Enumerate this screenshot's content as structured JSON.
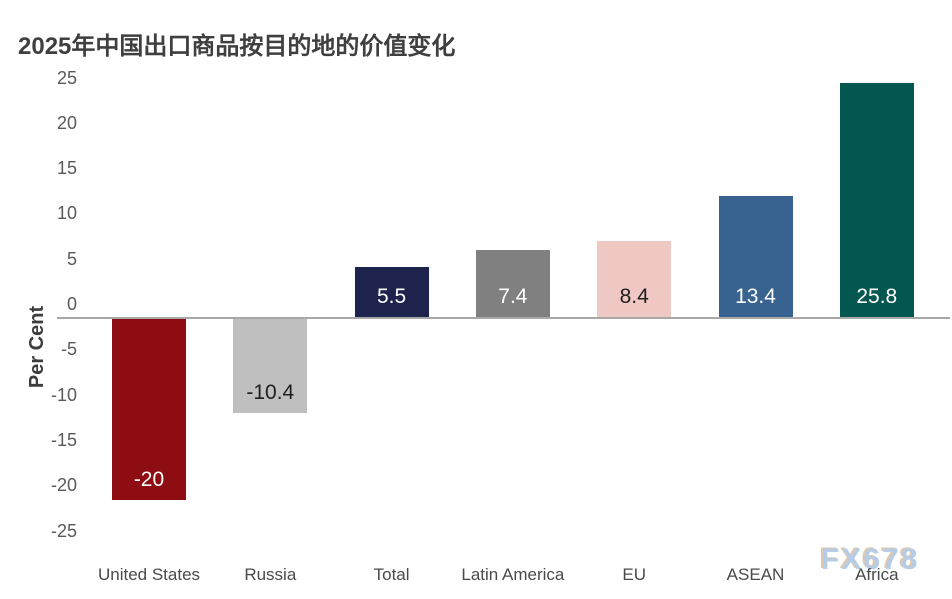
{
  "header": {
    "title": "2025年中国出口商品按目的地的价值变化"
  },
  "watermark": {
    "text": "FX678",
    "color": "#b5cbe6",
    "accent_color": "#dfc9ae"
  },
  "chart_data": {
    "type": "bar",
    "title": "2025年中国出口商品按目的地的价值变化",
    "xlabel": "",
    "ylabel": "Per Cent",
    "categories": [
      "United States",
      "Russia",
      "Total",
      "Latin America",
      "EU",
      "ASEAN",
      "Africa"
    ],
    "values": [
      -20,
      -10.4,
      5.5,
      7.4,
      8.4,
      13.4,
      25.8
    ],
    "bar_labels": [
      "-20",
      "-10.4",
      "5.5",
      "7.4",
      "8.4",
      "13.4",
      "25.8"
    ],
    "bar_colors": [
      "#8e0d12",
      "#bfbfbf",
      "#1e234e",
      "#808080",
      "#efc7c3",
      "#38628f",
      "#045750"
    ],
    "bar_label_colors": [
      "#ffffff",
      "#1f1f1f",
      "#ffffff",
      "#ffffff",
      "#1f1f1f",
      "#ffffff",
      "#ffffff"
    ],
    "yticks": [
      25,
      20,
      15,
      10,
      5,
      0,
      -5,
      -10,
      -15,
      -20,
      -25
    ],
    "ylim": [
      -25,
      25
    ],
    "grid": false,
    "legend": false,
    "axis_line_color": "#a8a8a8",
    "tick_label_color": "#595959",
    "category_label_color": "#4a4a4a"
  }
}
